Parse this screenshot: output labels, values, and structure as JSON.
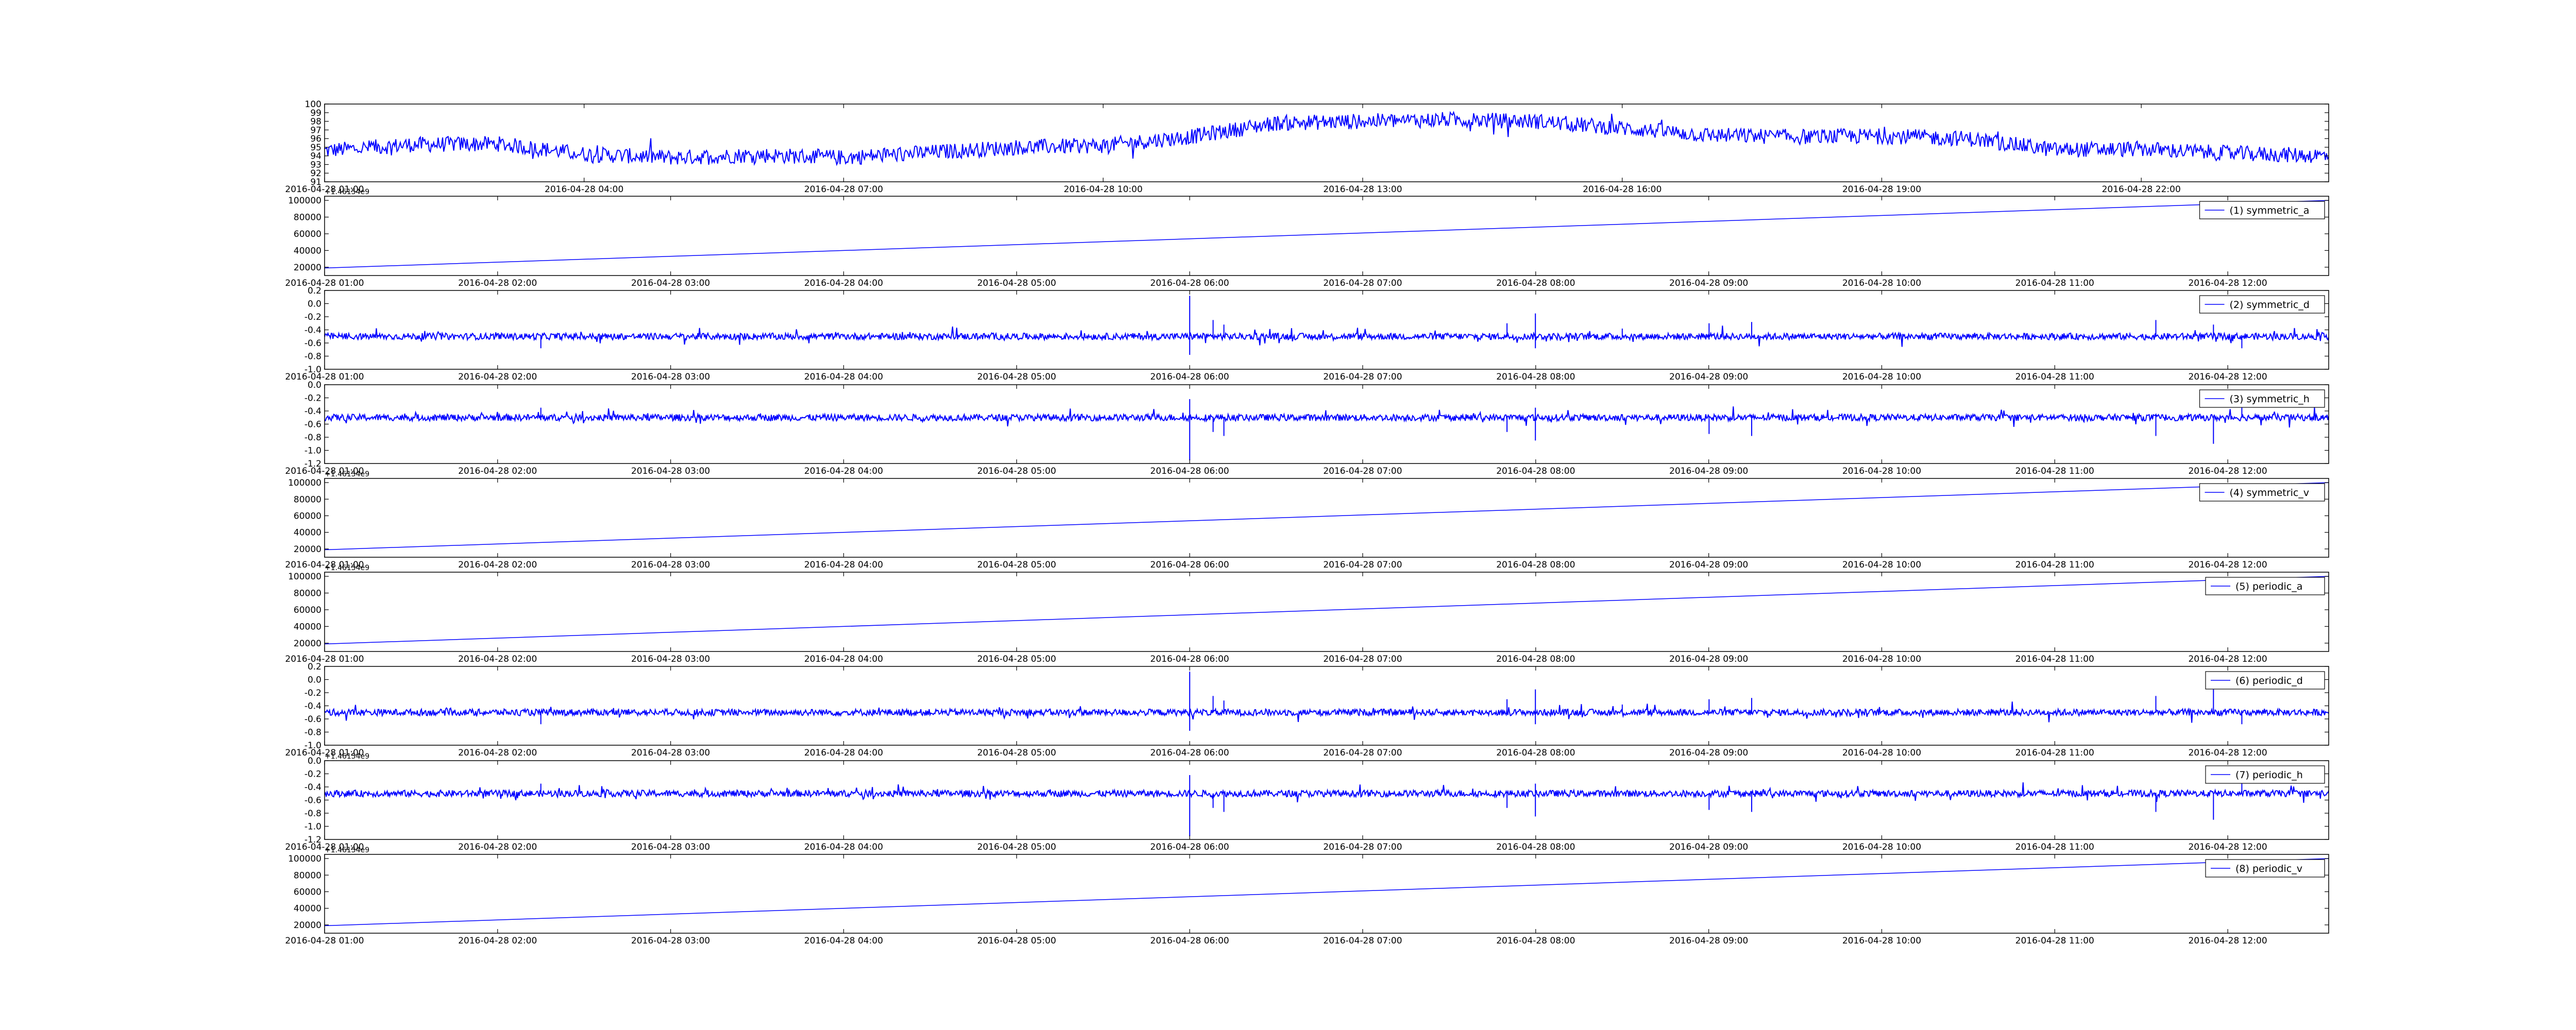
{
  "chart_data": [
    {
      "type": "line",
      "title": "",
      "xlabel": "",
      "ylabel": "",
      "x_range": [
        "2016-04-28 01:00",
        "2016-04-29 00:10"
      ],
      "ylim": [
        91,
        100
      ],
      "y_ticks": [
        91,
        92,
        93,
        94,
        95,
        96,
        97,
        98,
        99,
        100
      ],
      "x_ticks": [
        "2016-04-28 01:00",
        "2016-04-28 04:00",
        "2016-04-28 07:00",
        "2016-04-28 10:00",
        "2016-04-28 13:00",
        "2016-04-28 16:00",
        "2016-04-28 19:00",
        "2016-04-28 22:00"
      ],
      "color": "#0000ff",
      "legend": null,
      "series": [
        {
          "name": "",
          "style": "noisy",
          "noise": 0.9,
          "points": [
            [
              "2016-04-28 01:00",
              94.6
            ],
            [
              "2016-04-28 02:00",
              95.3
            ],
            [
              "2016-04-28 03:00",
              95.4
            ],
            [
              "2016-04-28 04:00",
              94.2
            ],
            [
              "2016-04-28 05:00",
              93.8
            ],
            [
              "2016-04-28 06:00",
              94.1
            ],
            [
              "2016-04-28 07:00",
              93.8
            ],
            [
              "2016-04-28 08:00",
              94.4
            ],
            [
              "2016-04-28 09:00",
              95.0
            ],
            [
              "2016-04-28 10:00",
              95.2
            ],
            [
              "2016-04-28 11:00",
              96.2
            ],
            [
              "2016-04-28 12:00",
              97.8
            ],
            [
              "2016-04-28 13:00",
              98.0
            ],
            [
              "2016-04-28 14:00",
              98.2
            ],
            [
              "2016-04-28 15:00",
              98.0
            ],
            [
              "2016-04-28 16:00",
              97.2
            ],
            [
              "2016-04-28 17:00",
              96.4
            ],
            [
              "2016-04-28 18:00",
              96.2
            ],
            [
              "2016-04-28 19:00",
              96.3
            ],
            [
              "2016-04-28 20:00",
              96.0
            ],
            [
              "2016-04-28 21:00",
              94.7
            ],
            [
              "2016-04-28 22:00",
              94.8
            ],
            [
              "2016-04-28 23:00",
              94.3
            ],
            [
              "2016-04-29 00:10",
              94.0
            ]
          ]
        }
      ]
    },
    {
      "type": "line",
      "legend": "(1) symmetric_a",
      "x_range": [
        "2016-04-28 01:00",
        "2016-04-28 12:35"
      ],
      "ylim": [
        10000,
        105000
      ],
      "y_ticks": [
        20000,
        40000,
        60000,
        80000,
        100000
      ],
      "y_offset_label": "+1.46154e9",
      "x_ticks": [
        "2016-04-28 01:00",
        "2016-04-28 02:00",
        "2016-04-28 03:00",
        "2016-04-28 04:00",
        "2016-04-28 05:00",
        "2016-04-28 06:00",
        "2016-04-28 07:00",
        "2016-04-28 08:00",
        "2016-04-28 09:00",
        "2016-04-28 10:00",
        "2016-04-28 11:00",
        "2016-04-28 12:00"
      ],
      "color": "#0000ff",
      "series": [
        {
          "name": "(1) symmetric_a",
          "style": "linear",
          "points": [
            [
              "2016-04-28 01:00",
              19000
            ],
            [
              "2016-04-28 12:35",
              100000
            ]
          ]
        }
      ]
    },
    {
      "type": "line",
      "legend": "(2) symmetric_d",
      "x_range": [
        "2016-04-28 01:00",
        "2016-04-28 12:35"
      ],
      "ylim": [
        -1.0,
        0.2
      ],
      "y_ticks": [
        -1.0,
        -0.8,
        -0.6,
        -0.4,
        -0.2,
        0.0,
        0.2
      ],
      "x_ticks": [
        "2016-04-28 01:00",
        "2016-04-28 02:00",
        "2016-04-28 03:00",
        "2016-04-28 04:00",
        "2016-04-28 05:00",
        "2016-04-28 06:00",
        "2016-04-28 07:00",
        "2016-04-28 08:00",
        "2016-04-28 09:00",
        "2016-04-28 10:00",
        "2016-04-28 11:00",
        "2016-04-28 12:00"
      ],
      "color": "#0000ff",
      "series": [
        {
          "name": "(2) symmetric_d",
          "style": "noisy-flat",
          "baseline": -0.5,
          "noise": 0.05,
          "spikes": [
            [
              "2016-04-28 02:15",
              -0.68
            ],
            [
              "2016-04-28 06:00",
              0.12
            ],
            [
              "2016-04-28 06:00",
              -0.78
            ],
            [
              "2016-04-28 06:08",
              -0.25
            ],
            [
              "2016-04-28 06:12",
              -0.32
            ],
            [
              "2016-04-28 07:50",
              -0.3
            ],
            [
              "2016-04-28 08:00",
              -0.15
            ],
            [
              "2016-04-28 08:00",
              -0.68
            ],
            [
              "2016-04-28 08:30",
              -0.38
            ],
            [
              "2016-04-28 09:00",
              -0.3
            ],
            [
              "2016-04-28 09:15",
              -0.28
            ],
            [
              "2016-04-28 11:35",
              -0.25
            ],
            [
              "2016-04-28 11:55",
              -0.32
            ],
            [
              "2016-04-28 12:05",
              -0.68
            ]
          ]
        }
      ]
    },
    {
      "type": "line",
      "legend": "(3) symmetric_h",
      "x_range": [
        "2016-04-28 01:00",
        "2016-04-28 12:35"
      ],
      "ylim": [
        -1.2,
        0.0
      ],
      "y_ticks": [
        -1.2,
        -1.0,
        -0.8,
        -0.6,
        -0.4,
        -0.2,
        0.0
      ],
      "x_ticks": [
        "2016-04-28 01:00",
        "2016-04-28 02:00",
        "2016-04-28 03:00",
        "2016-04-28 04:00",
        "2016-04-28 05:00",
        "2016-04-28 06:00",
        "2016-04-28 07:00",
        "2016-04-28 08:00",
        "2016-04-28 09:00",
        "2016-04-28 10:00",
        "2016-04-28 11:00",
        "2016-04-28 12:00"
      ],
      "color": "#0000ff",
      "series": [
        {
          "name": "(3) symmetric_h",
          "style": "noisy-flat",
          "baseline": -0.5,
          "noise": 0.05,
          "spikes": [
            [
              "2016-04-28 02:15",
              -0.35
            ],
            [
              "2016-04-28 06:00",
              -0.22
            ],
            [
              "2016-04-28 06:00",
              -1.15
            ],
            [
              "2016-04-28 06:08",
              -0.72
            ],
            [
              "2016-04-28 06:12",
              -0.78
            ],
            [
              "2016-04-28 07:50",
              -0.72
            ],
            [
              "2016-04-28 08:00",
              -0.85
            ],
            [
              "2016-04-28 08:00",
              -0.35
            ],
            [
              "2016-04-28 09:00",
              -0.75
            ],
            [
              "2016-04-28 09:15",
              -0.78
            ],
            [
              "2016-04-28 11:35",
              -0.78
            ],
            [
              "2016-04-28 11:55",
              -0.9
            ],
            [
              "2016-04-28 12:05",
              -0.35
            ]
          ]
        }
      ]
    },
    {
      "type": "line",
      "legend": "(4) symmetric_v",
      "x_range": [
        "2016-04-28 01:00",
        "2016-04-28 12:35"
      ],
      "ylim": [
        10000,
        105000
      ],
      "y_ticks": [
        20000,
        40000,
        60000,
        80000,
        100000
      ],
      "y_offset_label": "+1.46154e9",
      "x_ticks": [
        "2016-04-28 01:00",
        "2016-04-28 02:00",
        "2016-04-28 03:00",
        "2016-04-28 04:00",
        "2016-04-28 05:00",
        "2016-04-28 06:00",
        "2016-04-28 07:00",
        "2016-04-28 08:00",
        "2016-04-28 09:00",
        "2016-04-28 10:00",
        "2016-04-28 11:00",
        "2016-04-28 12:00"
      ],
      "color": "#0000ff",
      "series": [
        {
          "name": "(4) symmetric_v",
          "style": "linear",
          "points": [
            [
              "2016-04-28 01:00",
              19000
            ],
            [
              "2016-04-28 12:35",
              100000
            ]
          ]
        }
      ]
    },
    {
      "type": "line",
      "legend": "(5) periodic_a",
      "x_range": [
        "2016-04-28 01:00",
        "2016-04-28 12:35"
      ],
      "ylim": [
        10000,
        105000
      ],
      "y_ticks": [
        20000,
        40000,
        60000,
        80000,
        100000
      ],
      "y_offset_label": "+1.46154e9",
      "x_ticks": [
        "2016-04-28 01:00",
        "2016-04-28 02:00",
        "2016-04-28 03:00",
        "2016-04-28 04:00",
        "2016-04-28 05:00",
        "2016-04-28 06:00",
        "2016-04-28 07:00",
        "2016-04-28 08:00",
        "2016-04-28 09:00",
        "2016-04-28 10:00",
        "2016-04-28 11:00",
        "2016-04-28 12:00"
      ],
      "color": "#0000ff",
      "series": [
        {
          "name": "(5) periodic_a",
          "style": "linear",
          "points": [
            [
              "2016-04-28 01:00",
              19000
            ],
            [
              "2016-04-28 12:35",
              100000
            ]
          ]
        }
      ]
    },
    {
      "type": "line",
      "legend": "(6) periodic_d",
      "x_range": [
        "2016-04-28 01:00",
        "2016-04-28 12:35"
      ],
      "ylim": [
        -1.0,
        0.2
      ],
      "y_ticks": [
        -1.0,
        -0.8,
        -0.6,
        -0.4,
        -0.2,
        0.0,
        0.2
      ],
      "x_ticks": [
        "2016-04-28 01:00",
        "2016-04-28 02:00",
        "2016-04-28 03:00",
        "2016-04-28 04:00",
        "2016-04-28 05:00",
        "2016-04-28 06:00",
        "2016-04-28 07:00",
        "2016-04-28 08:00",
        "2016-04-28 09:00",
        "2016-04-28 10:00",
        "2016-04-28 11:00",
        "2016-04-28 12:00"
      ],
      "color": "#0000ff",
      "series": [
        {
          "name": "(6) periodic_d",
          "style": "noisy-flat",
          "baseline": -0.5,
          "noise": 0.05,
          "spikes": [
            [
              "2016-04-28 02:15",
              -0.68
            ],
            [
              "2016-04-28 06:00",
              0.12
            ],
            [
              "2016-04-28 06:00",
              -0.78
            ],
            [
              "2016-04-28 06:08",
              -0.25
            ],
            [
              "2016-04-28 06:12",
              -0.32
            ],
            [
              "2016-04-28 07:50",
              -0.3
            ],
            [
              "2016-04-28 08:00",
              -0.15
            ],
            [
              "2016-04-28 08:00",
              -0.68
            ],
            [
              "2016-04-28 08:30",
              -0.38
            ],
            [
              "2016-04-28 09:00",
              -0.3
            ],
            [
              "2016-04-28 09:15",
              -0.28
            ],
            [
              "2016-04-28 11:35",
              -0.25
            ],
            [
              "2016-04-28 11:55",
              -0.15
            ],
            [
              "2016-04-28 12:05",
              -0.68
            ]
          ]
        }
      ]
    },
    {
      "type": "line",
      "legend": "(7) periodic_h",
      "x_range": [
        "2016-04-28 01:00",
        "2016-04-28 12:35"
      ],
      "ylim": [
        -1.2,
        0.0
      ],
      "y_ticks": [
        -1.2,
        -1.0,
        -0.8,
        -0.6,
        -0.4,
        -0.2,
        0.0
      ],
      "y_offset_label": "+1.46154e9",
      "x_ticks": [
        "2016-04-28 01:00",
        "2016-04-28 02:00",
        "2016-04-28 03:00",
        "2016-04-28 04:00",
        "2016-04-28 05:00",
        "2016-04-28 06:00",
        "2016-04-28 07:00",
        "2016-04-28 08:00",
        "2016-04-28 09:00",
        "2016-04-28 10:00",
        "2016-04-28 11:00",
        "2016-04-28 12:00"
      ],
      "color": "#0000ff",
      "series": [
        {
          "name": "(7) periodic_h",
          "style": "noisy-flat",
          "baseline": -0.5,
          "noise": 0.05,
          "spikes": [
            [
              "2016-04-28 02:15",
              -0.35
            ],
            [
              "2016-04-28 06:00",
              -0.22
            ],
            [
              "2016-04-28 06:00",
              -1.15
            ],
            [
              "2016-04-28 06:08",
              -0.72
            ],
            [
              "2016-04-28 06:12",
              -0.78
            ],
            [
              "2016-04-28 07:50",
              -0.72
            ],
            [
              "2016-04-28 08:00",
              -0.85
            ],
            [
              "2016-04-28 08:00",
              -0.35
            ],
            [
              "2016-04-28 09:00",
              -0.75
            ],
            [
              "2016-04-28 09:15",
              -0.78
            ],
            [
              "2016-04-28 11:35",
              -0.78
            ],
            [
              "2016-04-28 11:55",
              -0.9
            ],
            [
              "2016-04-28 12:05",
              -0.35
            ]
          ]
        }
      ]
    },
    {
      "type": "line",
      "legend": "(8) periodic_v",
      "x_range": [
        "2016-04-28 01:00",
        "2016-04-28 12:35"
      ],
      "ylim": [
        10000,
        105000
      ],
      "y_ticks": [
        20000,
        40000,
        60000,
        80000,
        100000
      ],
      "y_offset_label": "+1.46154e9",
      "x_ticks": [
        "2016-04-28 01:00",
        "2016-04-28 02:00",
        "2016-04-28 03:00",
        "2016-04-28 04:00",
        "2016-04-28 05:00",
        "2016-04-28 06:00",
        "2016-04-28 07:00",
        "2016-04-28 08:00",
        "2016-04-28 09:00",
        "2016-04-28 10:00",
        "2016-04-28 11:00",
        "2016-04-28 12:00"
      ],
      "color": "#0000ff",
      "series": [
        {
          "name": "(8) periodic_v",
          "style": "linear",
          "points": [
            [
              "2016-04-28 01:00",
              19000
            ],
            [
              "2016-04-28 12:35",
              100000
            ]
          ]
        }
      ]
    }
  ]
}
